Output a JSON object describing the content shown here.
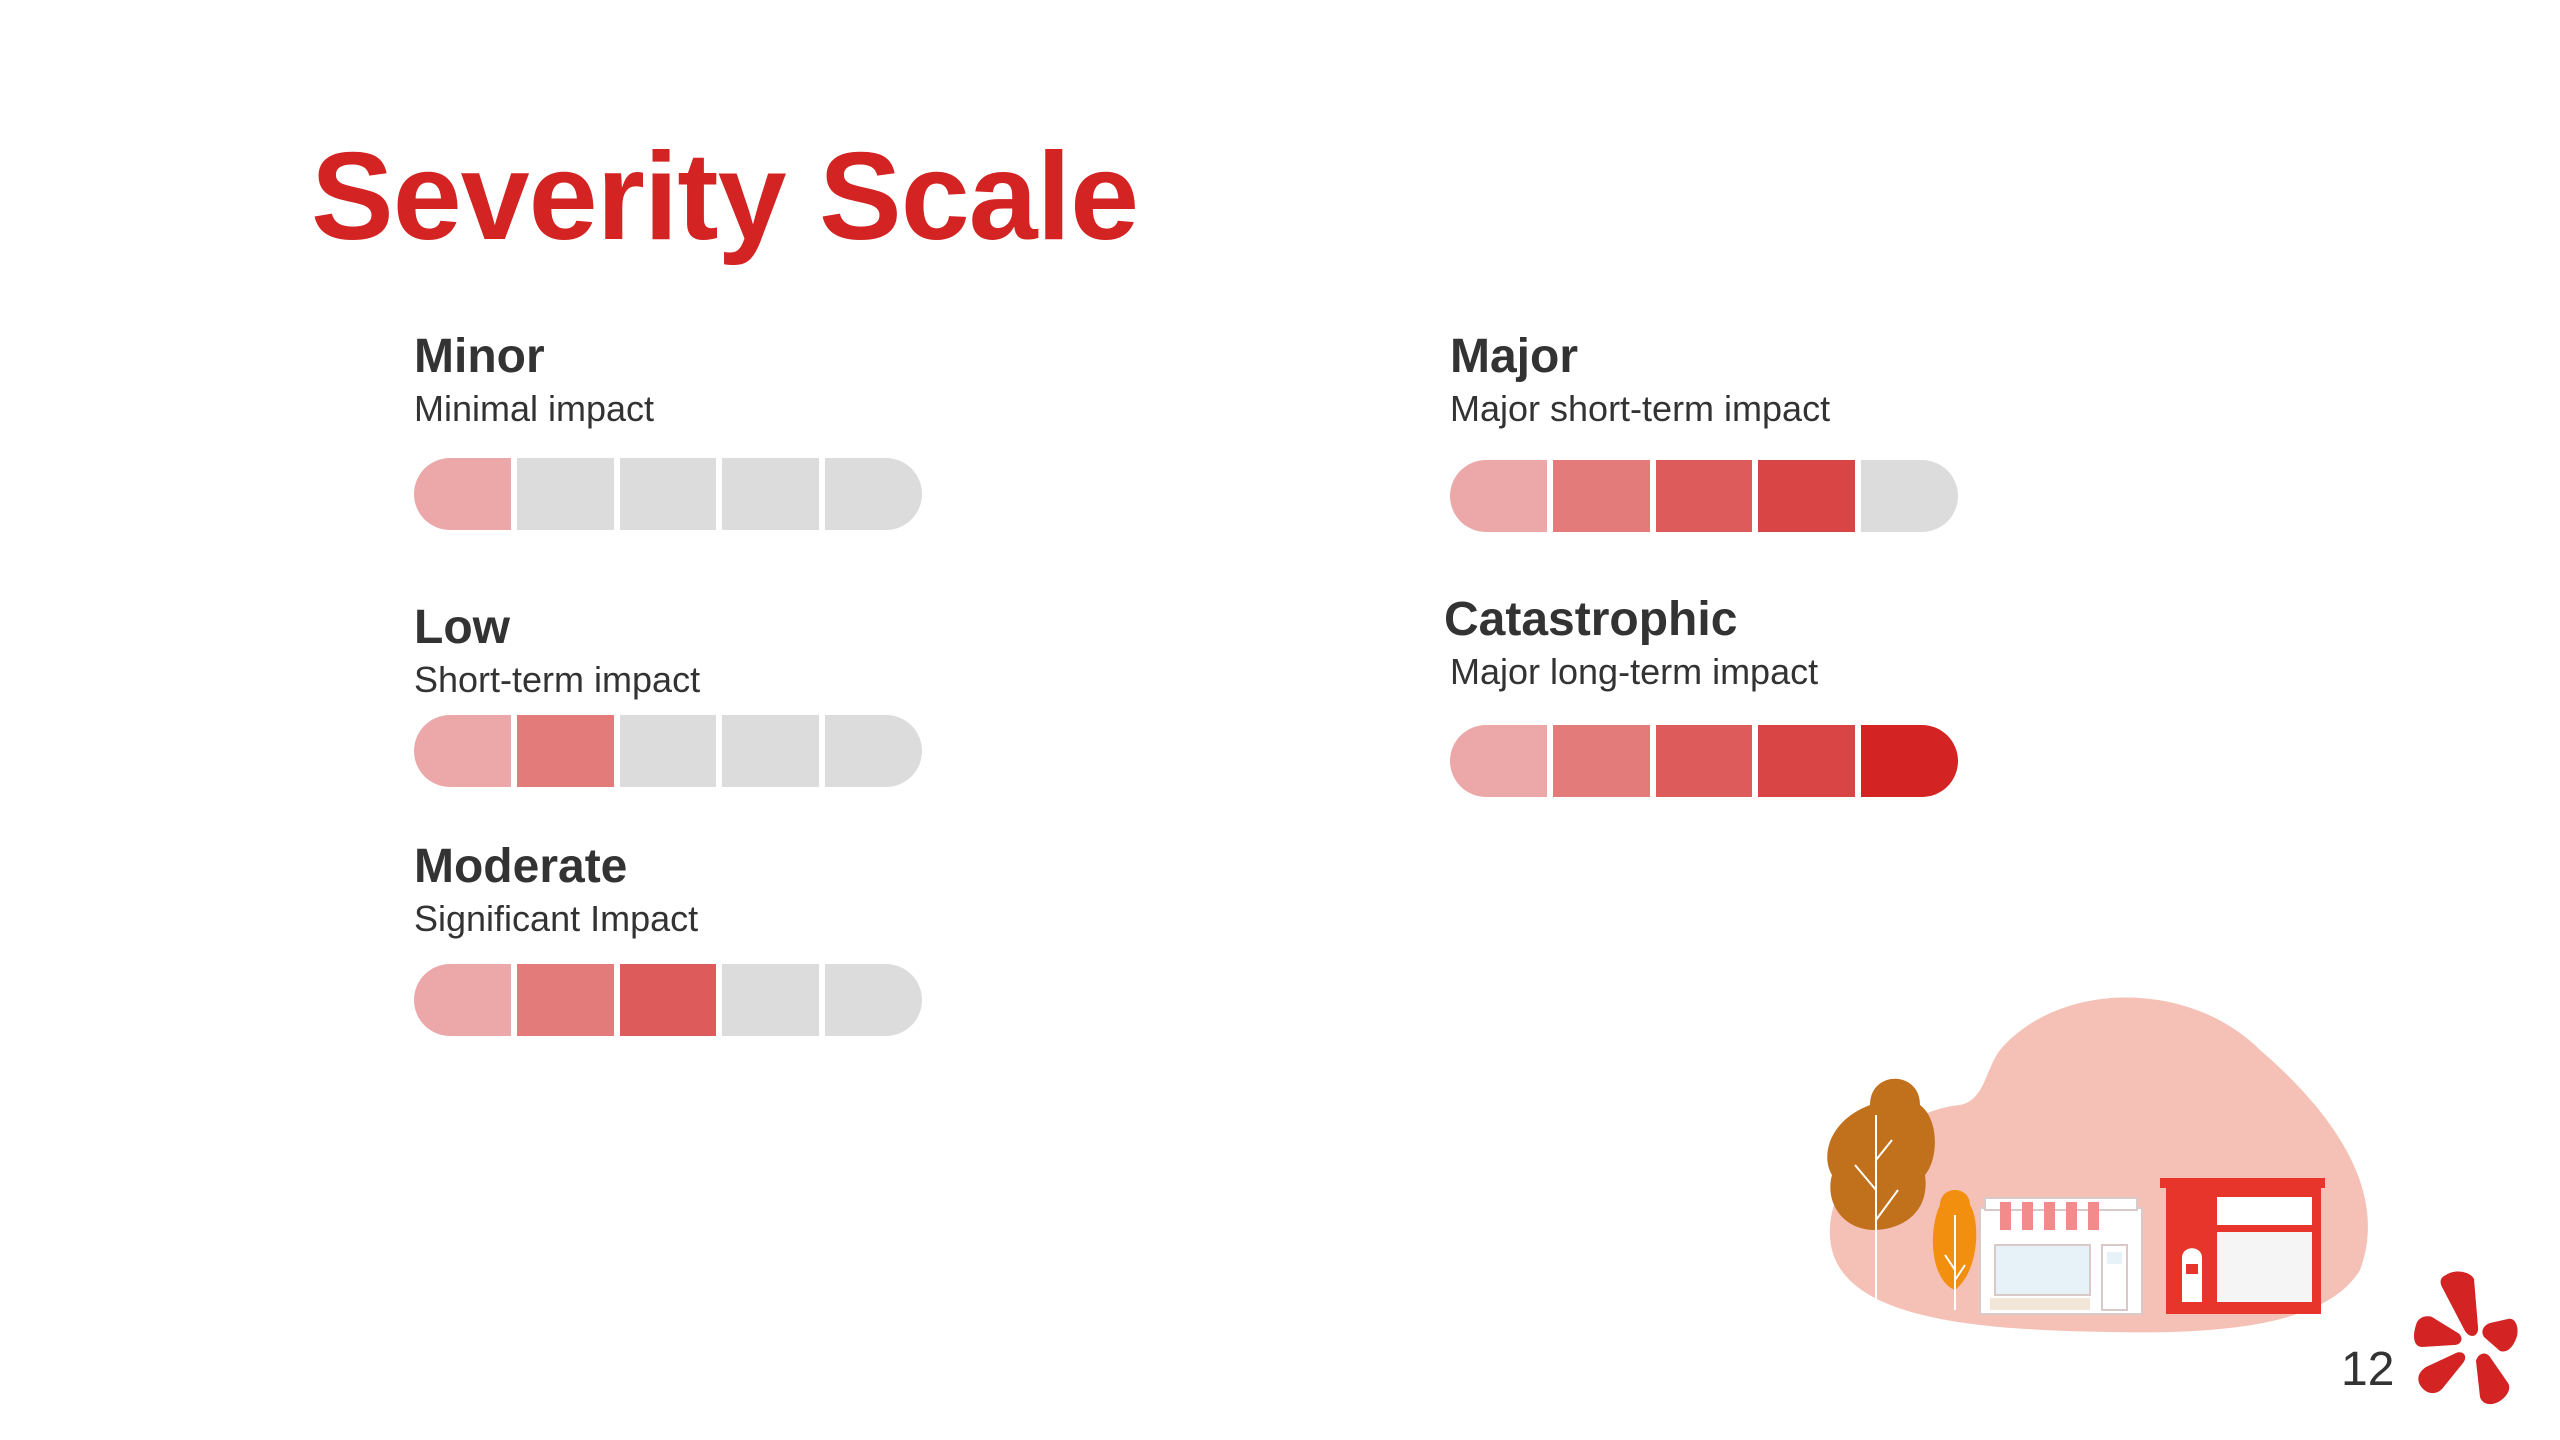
{
  "slide": {
    "title": "Severity Scale",
    "page_number": "12"
  },
  "palette": {
    "title": "#d32323",
    "inactive": "#dcdcdc",
    "steps": [
      "#eca8a8",
      "#e47b7b",
      "#de5b5b",
      "#d94545",
      "#d32323"
    ]
  },
  "levels": [
    {
      "id": "minor",
      "name": "Minor",
      "description": "Minimal impact",
      "filled": 1,
      "total": 5
    },
    {
      "id": "low",
      "name": "Low",
      "description": "Short-term impact",
      "filled": 2,
      "total": 5
    },
    {
      "id": "moderate",
      "name": "Moderate",
      "description": "Significant Impact",
      "filled": 3,
      "total": 5
    },
    {
      "id": "major",
      "name": "Major",
      "description": "Major short-term impact",
      "filled": 4,
      "total": 5
    },
    {
      "id": "catastrophic",
      "name": "Catastrophic",
      "description": "Major long-term impact",
      "filled": 5,
      "total": 5
    }
  ],
  "illustration": {
    "icons": [
      "tree-icon",
      "shop-front-icon",
      "red-storefront-icon"
    ]
  },
  "logo": {
    "icon": "yelp-burst-icon"
  }
}
